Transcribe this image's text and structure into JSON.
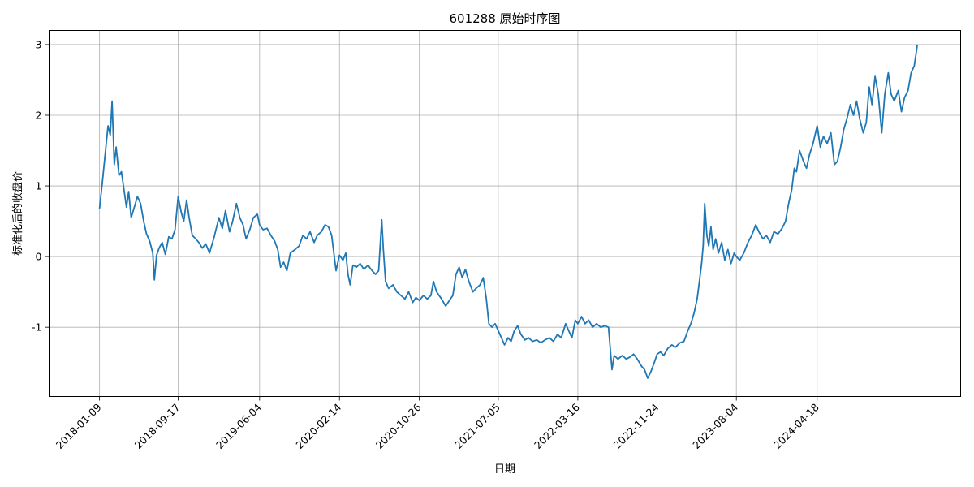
{
  "chart_data": {
    "type": "line",
    "title": "601288 原始时序图",
    "xlabel": "日期",
    "ylabel": "标准化后的收盘价",
    "x_ticks": [
      "2018-01-09",
      "2018-09-17",
      "2019-06-04",
      "2020-02-14",
      "2020-10-26",
      "2021-07-05",
      "2022-03-16",
      "2022-11-24",
      "2023-08-04",
      "2024-04-18"
    ],
    "y_ticks": [
      "3",
      "2",
      "1",
      "0",
      "-1"
    ],
    "y_tick_values": [
      3,
      2,
      1,
      0,
      -1
    ],
    "ylim": [
      -1.98,
      3.2
    ],
    "x_range": [
      "2017-08-01",
      "2025-07-20"
    ],
    "grid": true,
    "line_color": "#1f77b4",
    "series": [
      {
        "points": [
          [
            "2018-01-09",
            0.68
          ],
          [
            "2018-01-18",
            1.05
          ],
          [
            "2018-01-28",
            1.5
          ],
          [
            "2018-02-05",
            1.85
          ],
          [
            "2018-02-12",
            1.72
          ],
          [
            "2018-02-18",
            2.2
          ],
          [
            "2018-02-25",
            1.3
          ],
          [
            "2018-03-03",
            1.55
          ],
          [
            "2018-03-12",
            1.15
          ],
          [
            "2018-03-20",
            1.2
          ],
          [
            "2018-03-28",
            0.95
          ],
          [
            "2018-04-05",
            0.7
          ],
          [
            "2018-04-12",
            0.92
          ],
          [
            "2018-04-20",
            0.55
          ],
          [
            "2018-04-30",
            0.7
          ],
          [
            "2018-05-10",
            0.85
          ],
          [
            "2018-05-20",
            0.75
          ],
          [
            "2018-05-30",
            0.5
          ],
          [
            "2018-06-08",
            0.32
          ],
          [
            "2018-06-18",
            0.22
          ],
          [
            "2018-06-28",
            0.05
          ],
          [
            "2018-07-03",
            -0.33
          ],
          [
            "2018-07-10",
            0.02
          ],
          [
            "2018-07-18",
            0.12
          ],
          [
            "2018-07-28",
            0.2
          ],
          [
            "2018-08-07",
            0.03
          ],
          [
            "2018-08-18",
            0.28
          ],
          [
            "2018-08-28",
            0.25
          ],
          [
            "2018-09-07",
            0.38
          ],
          [
            "2018-09-17",
            0.85
          ],
          [
            "2018-09-27",
            0.62
          ],
          [
            "2018-10-05",
            0.5
          ],
          [
            "2018-10-14",
            0.8
          ],
          [
            "2018-10-22",
            0.55
          ],
          [
            "2018-11-01",
            0.3
          ],
          [
            "2018-11-12",
            0.25
          ],
          [
            "2018-11-22",
            0.2
          ],
          [
            "2018-12-03",
            0.12
          ],
          [
            "2018-12-14",
            0.18
          ],
          [
            "2018-12-26",
            0.05
          ],
          [
            "2019-01-10",
            0.28
          ],
          [
            "2019-01-25",
            0.55
          ],
          [
            "2019-02-05",
            0.4
          ],
          [
            "2019-02-15",
            0.65
          ],
          [
            "2019-02-28",
            0.35
          ],
          [
            "2019-03-10",
            0.5
          ],
          [
            "2019-03-22",
            0.75
          ],
          [
            "2019-04-02",
            0.55
          ],
          [
            "2019-04-12",
            0.45
          ],
          [
            "2019-04-22",
            0.25
          ],
          [
            "2019-05-05",
            0.4
          ],
          [
            "2019-05-15",
            0.55
          ],
          [
            "2019-05-28",
            0.6
          ],
          [
            "2019-06-04",
            0.45
          ],
          [
            "2019-06-15",
            0.38
          ],
          [
            "2019-06-28",
            0.4
          ],
          [
            "2019-07-10",
            0.3
          ],
          [
            "2019-07-22",
            0.22
          ],
          [
            "2019-08-01",
            0.1
          ],
          [
            "2019-08-10",
            -0.15
          ],
          [
            "2019-08-20",
            -0.08
          ],
          [
            "2019-08-30",
            -0.2
          ],
          [
            "2019-09-10",
            0.05
          ],
          [
            "2019-09-25",
            0.1
          ],
          [
            "2019-10-08",
            0.15
          ],
          [
            "2019-10-20",
            0.3
          ],
          [
            "2019-11-01",
            0.25
          ],
          [
            "2019-11-12",
            0.35
          ],
          [
            "2019-11-25",
            0.2
          ],
          [
            "2019-12-05",
            0.3
          ],
          [
            "2019-12-18",
            0.35
          ],
          [
            "2019-12-30",
            0.45
          ],
          [
            "2020-01-10",
            0.42
          ],
          [
            "2020-01-20",
            0.3
          ],
          [
            "2020-02-03",
            -0.2
          ],
          [
            "2020-02-14",
            0.02
          ],
          [
            "2020-02-25",
            -0.05
          ],
          [
            "2020-03-05",
            0.05
          ],
          [
            "2020-03-12",
            -0.25
          ],
          [
            "2020-03-19",
            -0.4
          ],
          [
            "2020-03-28",
            -0.12
          ],
          [
            "2020-04-08",
            -0.15
          ],
          [
            "2020-04-20",
            -0.1
          ],
          [
            "2020-05-02",
            -0.18
          ],
          [
            "2020-05-15",
            -0.12
          ],
          [
            "2020-05-28",
            -0.2
          ],
          [
            "2020-06-08",
            -0.25
          ],
          [
            "2020-06-18",
            -0.2
          ],
          [
            "2020-06-28",
            0.52
          ],
          [
            "2020-07-03",
            0.1
          ],
          [
            "2020-07-10",
            -0.35
          ],
          [
            "2020-07-20",
            -0.45
          ],
          [
            "2020-08-03",
            -0.4
          ],
          [
            "2020-08-15",
            -0.5
          ],
          [
            "2020-08-28",
            -0.55
          ],
          [
            "2020-09-10",
            -0.6
          ],
          [
            "2020-09-22",
            -0.5
          ],
          [
            "2020-10-05",
            -0.65
          ],
          [
            "2020-10-15",
            -0.58
          ],
          [
            "2020-10-26",
            -0.62
          ],
          [
            "2020-11-08",
            -0.55
          ],
          [
            "2020-11-20",
            -0.6
          ],
          [
            "2020-12-02",
            -0.55
          ],
          [
            "2020-12-10",
            -0.35
          ],
          [
            "2020-12-20",
            -0.5
          ],
          [
            "2021-01-05",
            -0.6
          ],
          [
            "2021-01-18",
            -0.7
          ],
          [
            "2021-01-30",
            -0.62
          ],
          [
            "2021-02-10",
            -0.55
          ],
          [
            "2021-02-20",
            -0.25
          ],
          [
            "2021-03-02",
            -0.15
          ],
          [
            "2021-03-12",
            -0.3
          ],
          [
            "2021-03-22",
            -0.18
          ],
          [
            "2021-04-02",
            -0.35
          ],
          [
            "2021-04-15",
            -0.5
          ],
          [
            "2021-04-25",
            -0.45
          ],
          [
            "2021-05-08",
            -0.4
          ],
          [
            "2021-05-18",
            -0.3
          ],
          [
            "2021-05-28",
            -0.6
          ],
          [
            "2021-06-05",
            -0.95
          ],
          [
            "2021-06-15",
            -1.0
          ],
          [
            "2021-06-25",
            -0.95
          ],
          [
            "2021-07-05",
            -1.05
          ],
          [
            "2021-07-15",
            -1.15
          ],
          [
            "2021-07-25",
            -1.25
          ],
          [
            "2021-08-05",
            -1.15
          ],
          [
            "2021-08-15",
            -1.2
          ],
          [
            "2021-08-25",
            -1.05
          ],
          [
            "2021-09-05",
            -0.98
          ],
          [
            "2021-09-15",
            -1.1
          ],
          [
            "2021-09-28",
            -1.18
          ],
          [
            "2021-10-10",
            -1.15
          ],
          [
            "2021-10-22",
            -1.2
          ],
          [
            "2021-11-05",
            -1.18
          ],
          [
            "2021-11-18",
            -1.22
          ],
          [
            "2021-12-01",
            -1.18
          ],
          [
            "2021-12-15",
            -1.15
          ],
          [
            "2021-12-28",
            -1.2
          ],
          [
            "2022-01-10",
            -1.1
          ],
          [
            "2022-01-22",
            -1.15
          ],
          [
            "2022-02-05",
            -0.95
          ],
          [
            "2022-02-15",
            -1.05
          ],
          [
            "2022-02-25",
            -1.15
          ],
          [
            "2022-03-08",
            -0.9
          ],
          [
            "2022-03-16",
            -0.95
          ],
          [
            "2022-03-28",
            -0.85
          ],
          [
            "2022-04-08",
            -0.95
          ],
          [
            "2022-04-20",
            -0.9
          ],
          [
            "2022-05-02",
            -1.0
          ],
          [
            "2022-05-15",
            -0.95
          ],
          [
            "2022-05-28",
            -1.0
          ],
          [
            "2022-06-10",
            -0.98
          ],
          [
            "2022-06-22",
            -1.0
          ],
          [
            "2022-07-03",
            -1.6
          ],
          [
            "2022-07-10",
            -1.4
          ],
          [
            "2022-07-22",
            -1.45
          ],
          [
            "2022-08-05",
            -1.4
          ],
          [
            "2022-08-18",
            -1.45
          ],
          [
            "2022-08-30",
            -1.42
          ],
          [
            "2022-09-10",
            -1.38
          ],
          [
            "2022-09-22",
            -1.45
          ],
          [
            "2022-10-05",
            -1.55
          ],
          [
            "2022-10-15",
            -1.6
          ],
          [
            "2022-10-25",
            -1.72
          ],
          [
            "2022-11-05",
            -1.62
          ],
          [
            "2022-11-15",
            -1.5
          ],
          [
            "2022-11-24",
            -1.38
          ],
          [
            "2022-12-05",
            -1.35
          ],
          [
            "2022-12-15",
            -1.4
          ],
          [
            "2022-12-28",
            -1.3
          ],
          [
            "2023-01-10",
            -1.25
          ],
          [
            "2023-01-22",
            -1.28
          ],
          [
            "2023-02-05",
            -1.22
          ],
          [
            "2023-02-18",
            -1.2
          ],
          [
            "2023-03-02",
            -1.05
          ],
          [
            "2023-03-12",
            -0.95
          ],
          [
            "2023-03-22",
            -0.8
          ],
          [
            "2023-04-01",
            -0.6
          ],
          [
            "2023-04-08",
            -0.35
          ],
          [
            "2023-04-15",
            -0.1
          ],
          [
            "2023-04-20",
            0.15
          ],
          [
            "2023-04-25",
            0.75
          ],
          [
            "2023-05-02",
            0.3
          ],
          [
            "2023-05-08",
            0.15
          ],
          [
            "2023-05-15",
            0.42
          ],
          [
            "2023-05-22",
            0.1
          ],
          [
            "2023-05-30",
            0.25
          ],
          [
            "2023-06-08",
            0.05
          ],
          [
            "2023-06-18",
            0.2
          ],
          [
            "2023-06-28",
            -0.05
          ],
          [
            "2023-07-08",
            0.1
          ],
          [
            "2023-07-18",
            -0.1
          ],
          [
            "2023-07-28",
            0.05
          ],
          [
            "2023-08-04",
            0.0
          ],
          [
            "2023-08-15",
            -0.05
          ],
          [
            "2023-08-28",
            0.05
          ],
          [
            "2023-09-10",
            0.2
          ],
          [
            "2023-09-22",
            0.3
          ],
          [
            "2023-10-05",
            0.45
          ],
          [
            "2023-10-15",
            0.35
          ],
          [
            "2023-10-28",
            0.25
          ],
          [
            "2023-11-08",
            0.3
          ],
          [
            "2023-11-20",
            0.2
          ],
          [
            "2023-12-02",
            0.35
          ],
          [
            "2023-12-15",
            0.32
          ],
          [
            "2023-12-28",
            0.4
          ],
          [
            "2024-01-08",
            0.5
          ],
          [
            "2024-01-18",
            0.75
          ],
          [
            "2024-01-28",
            0.95
          ],
          [
            "2024-02-05",
            1.25
          ],
          [
            "2024-02-12",
            1.2
          ],
          [
            "2024-02-22",
            1.5
          ],
          [
            "2024-03-05",
            1.35
          ],
          [
            "2024-03-15",
            1.25
          ],
          [
            "2024-03-25",
            1.45
          ],
          [
            "2024-04-05",
            1.6
          ],
          [
            "2024-04-18",
            1.85
          ],
          [
            "2024-04-28",
            1.55
          ],
          [
            "2024-05-08",
            1.7
          ],
          [
            "2024-05-20",
            1.6
          ],
          [
            "2024-06-01",
            1.75
          ],
          [
            "2024-06-12",
            1.3
          ],
          [
            "2024-06-22",
            1.35
          ],
          [
            "2024-07-02",
            1.55
          ],
          [
            "2024-07-12",
            1.8
          ],
          [
            "2024-07-22",
            1.95
          ],
          [
            "2024-08-02",
            2.15
          ],
          [
            "2024-08-12",
            2.0
          ],
          [
            "2024-08-22",
            2.2
          ],
          [
            "2024-09-01",
            1.95
          ],
          [
            "2024-09-12",
            1.75
          ],
          [
            "2024-09-22",
            1.9
          ],
          [
            "2024-10-01",
            2.4
          ],
          [
            "2024-10-10",
            2.15
          ],
          [
            "2024-10-20",
            2.55
          ],
          [
            "2024-10-30",
            2.3
          ],
          [
            "2024-11-10",
            1.75
          ],
          [
            "2024-11-20",
            2.3
          ],
          [
            "2024-12-01",
            2.6
          ],
          [
            "2024-12-10",
            2.3
          ],
          [
            "2024-12-20",
            2.2
          ],
          [
            "2025-01-02",
            2.35
          ],
          [
            "2025-01-12",
            2.05
          ],
          [
            "2025-01-22",
            2.25
          ],
          [
            "2025-02-02",
            2.35
          ],
          [
            "2025-02-12",
            2.6
          ],
          [
            "2025-02-22",
            2.7
          ],
          [
            "2025-03-04",
            3.0
          ]
        ]
      }
    ]
  }
}
